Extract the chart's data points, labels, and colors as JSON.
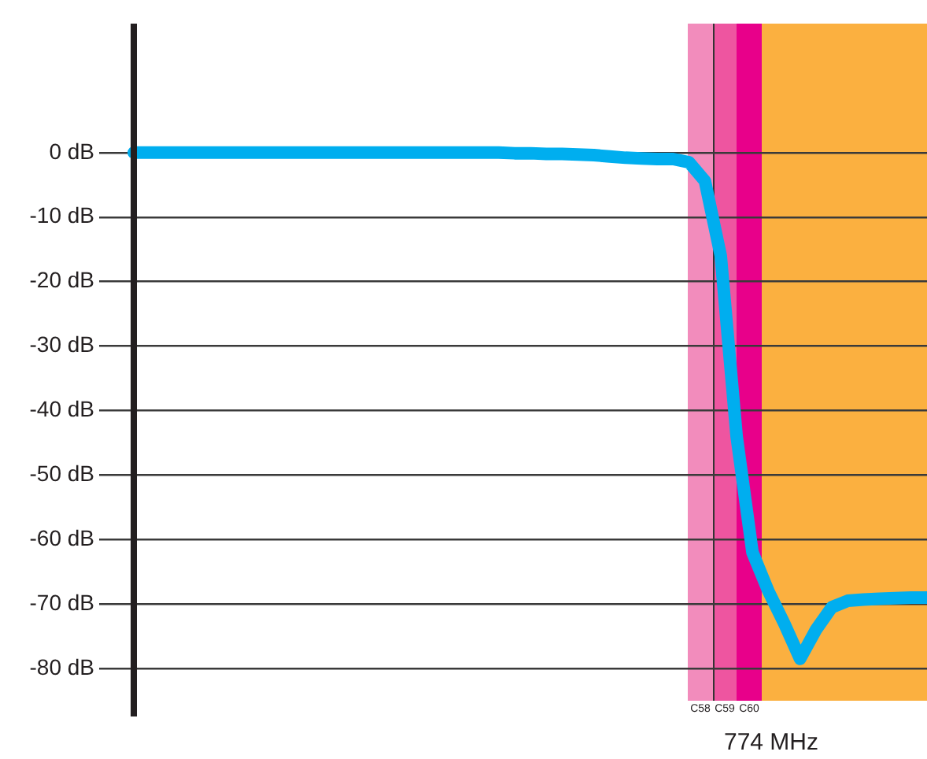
{
  "chart_data": {
    "type": "line",
    "categories": [
      null,
      null,
      null,
      null,
      null,
      null,
      null,
      null,
      null,
      null,
      null,
      null,
      null,
      null,
      null,
      null,
      null,
      null,
      null,
      null,
      null,
      null,
      null,
      null,
      null,
      null,
      null,
      null,
      null,
      null,
      null,
      null,
      null,
      null,
      null,
      null,
      null,
      null,
      null,
      null,
      null,
      null,
      null,
      null,
      null,
      null,
      null,
      null,
      null,
      null,
      null
    ],
    "series": [
      {
        "color": "#00aeef",
        "values": [
          0,
          0,
          0,
          0,
          0,
          0,
          0,
          0,
          0,
          0,
          0,
          0,
          0,
          0,
          0,
          0,
          0,
          0,
          0,
          0,
          0,
          0,
          0,
          0,
          -0.1,
          -0.1,
          -0.2,
          -0.2,
          -0.3,
          -0.4,
          -0.6,
          -0.8,
          -0.9,
          -1,
          -1,
          -1.5,
          -4.4,
          -16,
          -44,
          -62,
          -68,
          -73,
          -78.5,
          -74,
          -70.5,
          -69.5,
          -69.3,
          -69.2,
          -69.1,
          -69,
          -69
        ]
      }
    ],
    "ylim": [
      -85,
      20
    ],
    "yticks": [
      {
        "value": 0,
        "label": "0 dB"
      },
      {
        "value": -10,
        "label": "-10 dB"
      },
      {
        "value": -20,
        "label": "-20 dB"
      },
      {
        "value": -30,
        "label": "-30 dB"
      },
      {
        "value": -40,
        "label": "-40 dB"
      },
      {
        "value": -50,
        "label": "-50 dB"
      },
      {
        "value": -60,
        "label": "-60 dB"
      },
      {
        "value": -70,
        "label": "-70 dB"
      },
      {
        "value": -80,
        "label": "-80 dB"
      }
    ],
    "tick_labels": "y",
    "grid": "y",
    "legend": false,
    "marker": "none",
    "line_style": "solid",
    "annotations": [
      "C58",
      "C59",
      "C60",
      "774 MHz"
    ]
  }
}
